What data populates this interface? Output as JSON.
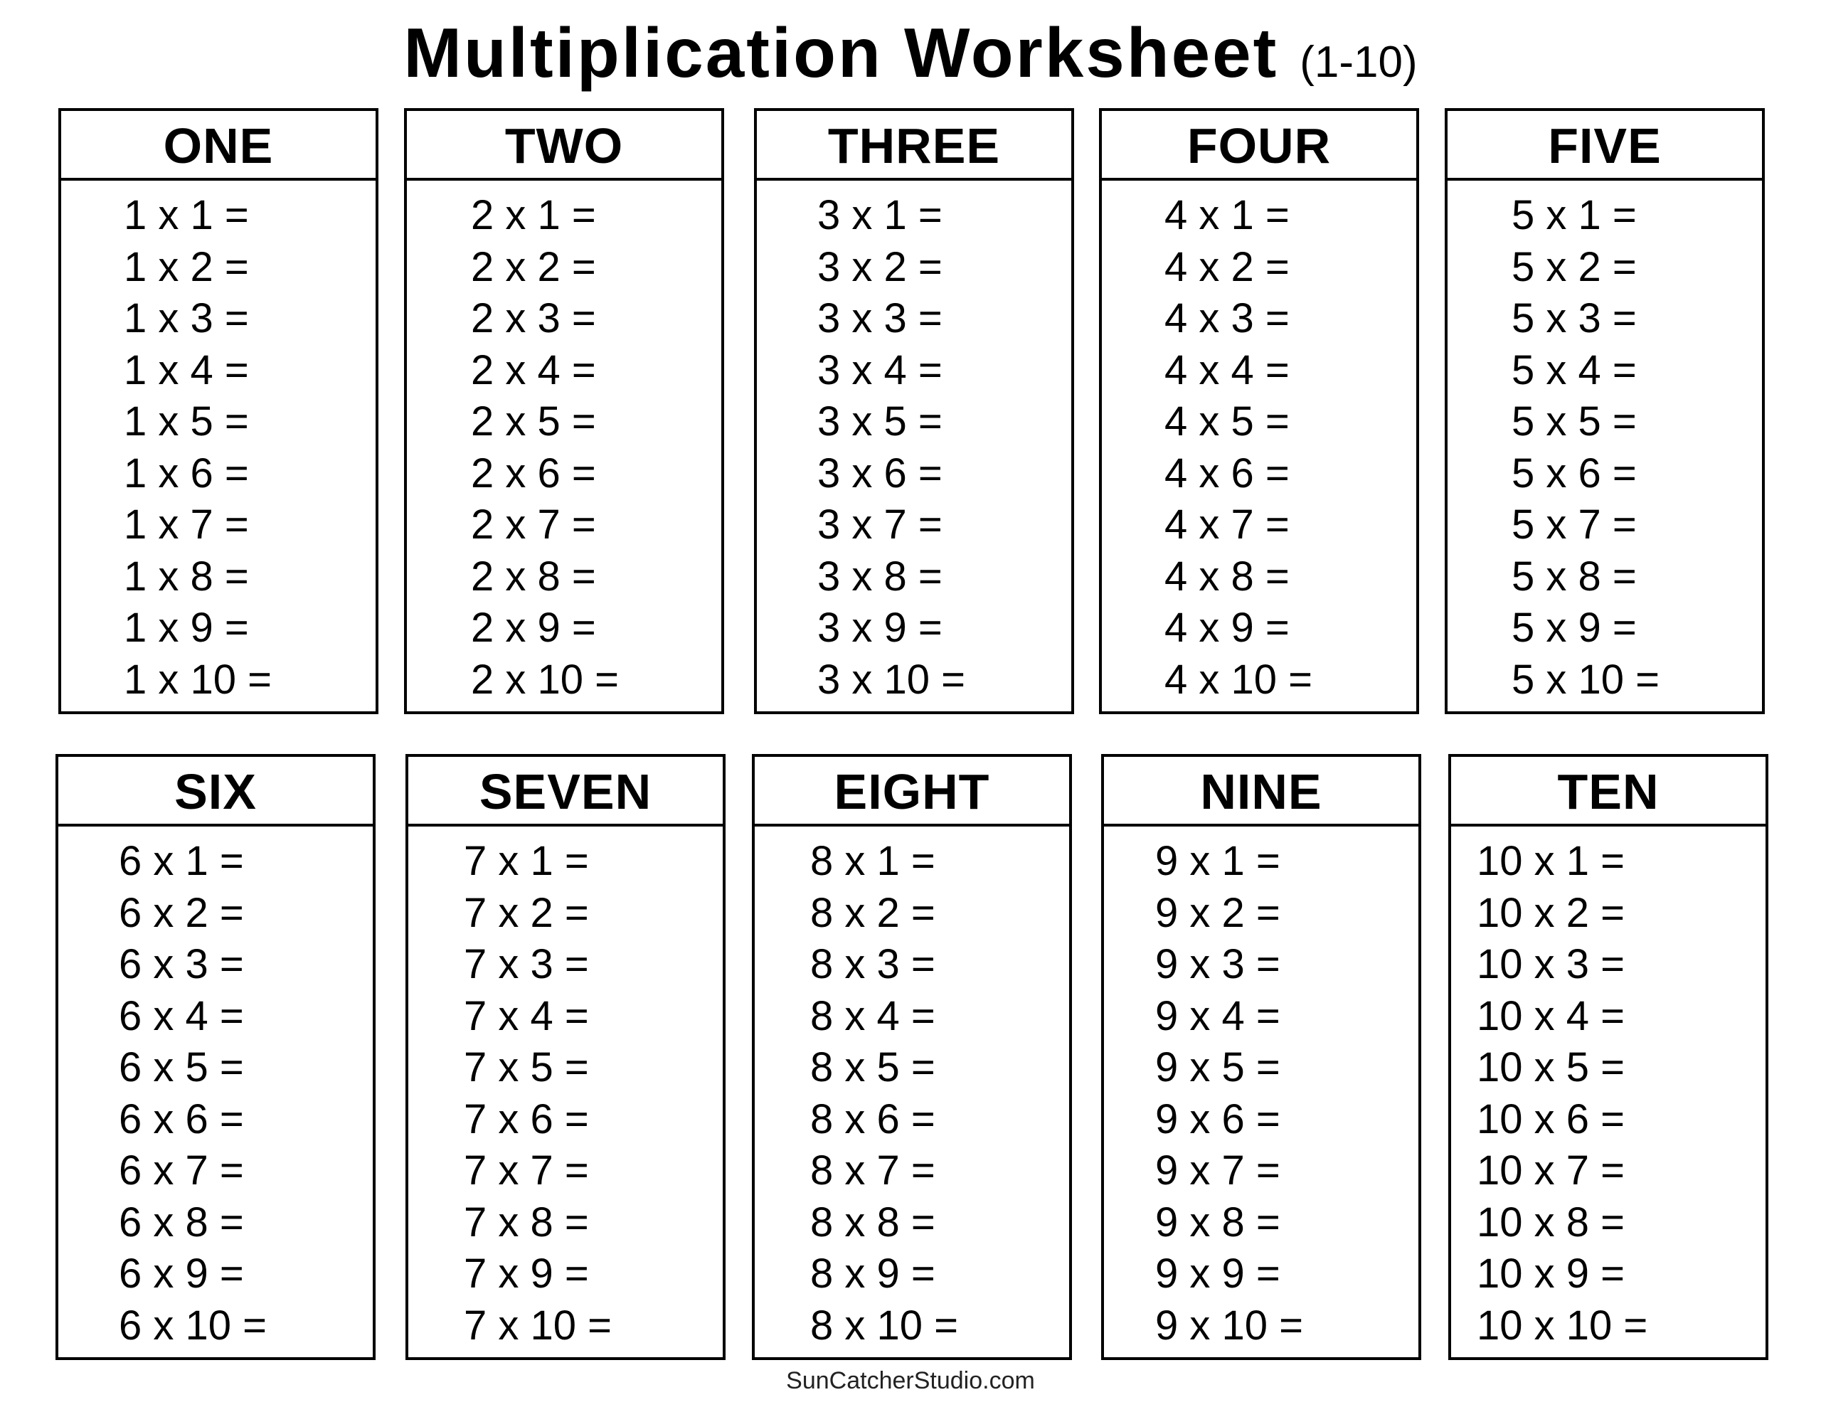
{
  "title": {
    "main": "Multiplication Worksheet",
    "sub": "(1-10)"
  },
  "tables": [
    {
      "heading": "ONE",
      "rows": [
        "1 x 1 =",
        "1 x 2 =",
        "1 x 3 =",
        "1 x 4 =",
        "1 x 5 =",
        "1 x 6 =",
        "1 x 7 =",
        "1 x 8 =",
        "1 x 9 =",
        "1 x 10 ="
      ]
    },
    {
      "heading": "TWO",
      "rows": [
        "2 x 1 =",
        "2 x 2 =",
        "2 x 3 =",
        "2 x 4 =",
        "2 x 5 =",
        "2 x 6 =",
        "2 x 7 =",
        "2 x 8 =",
        "2 x 9 =",
        "2 x 10 ="
      ]
    },
    {
      "heading": "THREE",
      "rows": [
        "3 x 1 =",
        "3 x 2 =",
        "3 x 3 =",
        "3 x 4 =",
        "3 x 5 =",
        "3 x 6 =",
        "3 x 7 =",
        "3 x 8 =",
        "3 x 9 =",
        "3 x 10 ="
      ]
    },
    {
      "heading": "FOUR",
      "rows": [
        "4 x 1 =",
        "4 x 2 =",
        "4 x 3 =",
        "4 x 4 =",
        "4 x 5 =",
        "4 x 6 =",
        "4 x 7 =",
        "4 x 8 =",
        "4 x 9 =",
        "4 x 10 ="
      ]
    },
    {
      "heading": "FIVE",
      "rows": [
        "5 x 1 =",
        "5 x 2 =",
        "5 x 3 =",
        "5 x 4 =",
        "5 x 5 =",
        "5 x 6 =",
        "5 x 7 =",
        "5 x 8 =",
        "5 x 9 =",
        "5 x 10 ="
      ]
    },
    {
      "heading": "SIX",
      "rows": [
        "6 x 1 =",
        "6 x 2 =",
        "6 x 3 =",
        "6 x 4 =",
        "6 x 5 =",
        "6 x 6 =",
        "6 x 7 =",
        "6 x 8 =",
        "6 x 9 =",
        "6 x 10 ="
      ]
    },
    {
      "heading": "SEVEN",
      "rows": [
        "7 x 1 =",
        "7 x 2 =",
        "7 x 3 =",
        "7 x 4 =",
        "7 x 5 =",
        "7 x 6 =",
        "7 x 7 =",
        "7 x 8 =",
        "7 x 9 =",
        "7 x 10 ="
      ]
    },
    {
      "heading": "EIGHT",
      "rows": [
        "8 x 1 =",
        "8 x 2 =",
        "8 x 3 =",
        "8 x 4 =",
        "8 x 5 =",
        "8 x 6 =",
        "8 x 7 =",
        "8 x 8 =",
        "8 x 9 =",
        "8 x 10 ="
      ]
    },
    {
      "heading": "NINE",
      "rows": [
        "9 x 1 =",
        "9 x 2 =",
        "9 x 3 =",
        "9 x 4 =",
        "9 x 5 =",
        "9 x 6 =",
        "9 x 7 =",
        "9 x 8 =",
        "9 x 9 =",
        "9 x 10 ="
      ]
    },
    {
      "heading": "TEN",
      "rows": [
        "10 x 1 =",
        "10 x 2 =",
        "10 x 3 =",
        "10 x 4 =",
        "10 x 5 =",
        "10 x 6 =",
        "10 x 7 =",
        "10 x 8 =",
        "10 x 9 =",
        "10 x 10 ="
      ]
    }
  ],
  "footer": "SunCatcherStudio.com"
}
